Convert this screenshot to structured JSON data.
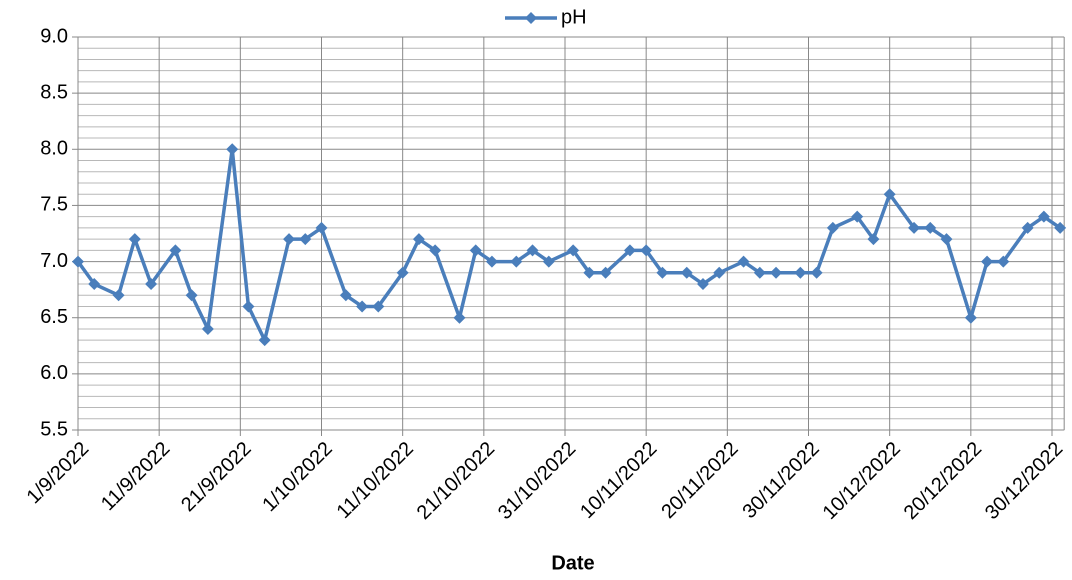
{
  "chart_data": {
    "type": "line",
    "x_label": "Date",
    "legend": "top",
    "grid": true,
    "x": [
      "2022-09-01",
      "2022-09-03",
      "2022-09-06",
      "2022-09-08",
      "2022-09-10",
      "2022-09-13",
      "2022-09-15",
      "2022-09-17",
      "2022-09-20",
      "2022-09-22",
      "2022-09-24",
      "2022-09-27",
      "2022-09-29",
      "2022-10-01",
      "2022-10-04",
      "2022-10-06",
      "2022-10-08",
      "2022-10-11",
      "2022-10-13",
      "2022-10-15",
      "2022-10-18",
      "2022-10-20",
      "2022-10-22",
      "2022-10-25",
      "2022-10-27",
      "2022-10-29",
      "2022-11-01",
      "2022-11-03",
      "2022-11-05",
      "2022-11-08",
      "2022-11-10",
      "2022-11-12",
      "2022-11-15",
      "2022-11-17",
      "2022-11-19",
      "2022-11-22",
      "2022-11-24",
      "2022-11-26",
      "2022-11-29",
      "2022-12-01",
      "2022-12-03",
      "2022-12-06",
      "2022-12-08",
      "2022-12-10",
      "2022-12-13",
      "2022-12-15",
      "2022-12-17",
      "2022-12-20",
      "2022-12-22",
      "2022-12-24",
      "2022-12-27",
      "2022-12-29",
      "2022-12-31"
    ],
    "series": [
      {
        "name": "pH",
        "color": "#4a7ebb",
        "values": [
          7.0,
          6.8,
          6.7,
          7.2,
          6.8,
          7.1,
          6.7,
          6.4,
          8.0,
          6.6,
          6.3,
          7.2,
          7.2,
          7.3,
          6.7,
          6.6,
          6.6,
          6.9,
          7.2,
          7.1,
          6.5,
          7.1,
          7.0,
          7.0,
          7.1,
          7.0,
          7.1,
          6.9,
          6.9,
          7.1,
          7.1,
          6.9,
          6.9,
          6.8,
          6.9,
          7.0,
          6.9,
          6.9,
          6.9,
          6.9,
          7.3,
          7.4,
          7.2,
          7.6,
          7.3,
          7.3,
          7.2,
          6.5,
          7.0,
          7.0,
          7.3,
          7.4,
          7.3
        ]
      }
    ],
    "xlim": [
      "2022-09-01",
      "2022-12-31"
    ],
    "xticks": [
      {
        "value": "2022-09-01",
        "label": "1/9/2022"
      },
      {
        "value": "2022-09-11",
        "label": "11/9/2022"
      },
      {
        "value": "2022-09-21",
        "label": "21/9/2022"
      },
      {
        "value": "2022-10-01",
        "label": "1/10/2022"
      },
      {
        "value": "2022-10-11",
        "label": "11/10/2022"
      },
      {
        "value": "2022-10-21",
        "label": "21/10/2022"
      },
      {
        "value": "2022-10-31",
        "label": "31/10/2022"
      },
      {
        "value": "2022-11-10",
        "label": "10/11/2022"
      },
      {
        "value": "2022-11-20",
        "label": "20/11/2022"
      },
      {
        "value": "2022-11-30",
        "label": "30/11/2022"
      },
      {
        "value": "2022-12-10",
        "label": "10/12/2022"
      },
      {
        "value": "2022-12-20",
        "label": "20/12/2022"
      },
      {
        "value": "2022-12-30",
        "label": "30/12/2022"
      }
    ],
    "ylim": [
      5.5,
      9.0
    ],
    "yticks": [
      {
        "value": 5.5,
        "label": "5.5"
      },
      {
        "value": 6.0,
        "label": "6.0"
      },
      {
        "value": 6.5,
        "label": "6.5"
      },
      {
        "value": 7.0,
        "label": "7.0"
      },
      {
        "value": 7.5,
        "label": "7.5"
      },
      {
        "value": 8.0,
        "label": "8.0"
      },
      {
        "value": 8.5,
        "label": "8.5"
      },
      {
        "value": 9.0,
        "label": "9.0"
      }
    ],
    "yminorticks": [
      5.6,
      5.7,
      5.8,
      5.9,
      6.1,
      6.2,
      6.3,
      6.4,
      6.6,
      6.7,
      6.8,
      6.9,
      7.1,
      7.2,
      7.3,
      7.4,
      7.6,
      7.7,
      7.8,
      7.9,
      8.1,
      8.2,
      8.3,
      8.4,
      8.6,
      8.7,
      8.8,
      8.9
    ]
  }
}
